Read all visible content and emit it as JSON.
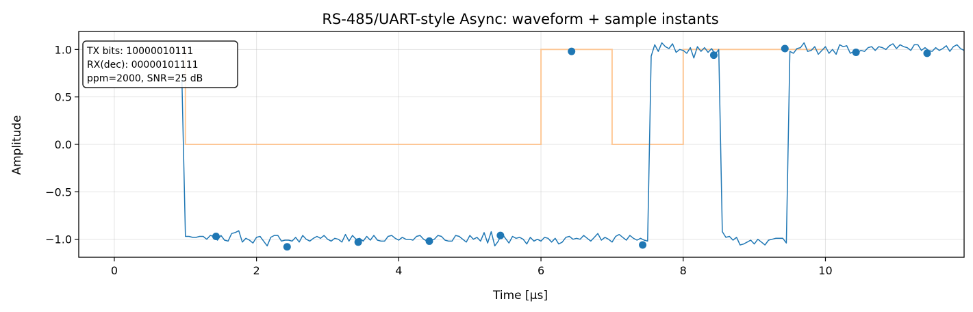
{
  "chart_data": {
    "type": "line",
    "title": "RS-485/UART-style Async: waveform + sample instants",
    "xlabel": "Time [μs]",
    "ylabel": "Amplitude",
    "xlim": [
      -0.5,
      11.95
    ],
    "ylim": [
      -1.19,
      1.19
    ],
    "xticks": [
      0,
      2,
      4,
      6,
      8,
      10
    ],
    "xtick_labels": [
      "0",
      "2",
      "4",
      "6",
      "8",
      "10"
    ],
    "yticks": [
      -1.0,
      -0.5,
      0.0,
      0.5,
      1.0
    ],
    "ytick_labels": [
      "−1.0",
      "−0.5",
      "0.0",
      "0.5",
      "1.0"
    ],
    "grid": true,
    "colors": {
      "waveform": "#1f77b4",
      "ideal": "#ffbf86",
      "samples": "#1f77b4"
    },
    "annotation": {
      "lines": [
        "TX bits: 10000010111",
        "RX(dec): 00000101111",
        "ppm=2000, SNR=25 dB"
      ],
      "placement": "top-left"
    },
    "series": [
      {
        "kind": "step",
        "x": [
          0.95,
          1.0,
          1.0,
          6.0,
          6.0,
          7.0,
          7.0,
          8.0,
          8.0,
          10.0
        ],
        "y": [
          1,
          1,
          0,
          0,
          1,
          1,
          0,
          0,
          1,
          1
        ]
      },
      {
        "kind": "line",
        "x_start": 0.95,
        "x_step": 0.05,
        "y": [
          0.7,
          -0.97,
          -0.97,
          -0.98,
          -0.98,
          -0.97,
          -0.97,
          -1.0,
          -0.96,
          -0.97,
          -1.01,
          -0.96,
          -1.01,
          -1.02,
          -0.94,
          -0.93,
          -0.91,
          -1.03,
          -0.99,
          -1.01,
          -1.04,
          -0.98,
          -0.97,
          -1.02,
          -1.07,
          -0.98,
          -0.96,
          -0.96,
          -1.02,
          -1.01,
          -1.01,
          -1.02,
          -0.98,
          -1.03,
          -0.96,
          -1.0,
          -1.02,
          -0.99,
          -0.97,
          -0.99,
          -0.96,
          -1.0,
          -1.02,
          -0.99,
          -1.0,
          -1.03,
          -0.95,
          -1.02,
          -0.96,
          -1.0,
          -0.99,
          -1.02,
          -0.97,
          -1.01,
          -0.96,
          -1.01,
          -1.02,
          -1.02,
          -0.97,
          -0.96,
          -0.99,
          -1.01,
          -0.98,
          -1.0,
          -1.0,
          -1.01,
          -0.97,
          -0.96,
          -1.0,
          -1.02,
          -1.01,
          -1.0,
          -0.96,
          -0.97,
          -1.01,
          -1.02,
          -1.02,
          -0.96,
          -0.97,
          -1.0,
          -1.03,
          -0.96,
          -1.0,
          -0.98,
          -1.02,
          -0.93,
          -1.04,
          -0.92,
          -1.07,
          -1.02,
          -0.94,
          -0.99,
          -1.04,
          -0.97,
          -0.99,
          -0.98,
          -1.0,
          -1.05,
          -0.98,
          -1.02,
          -1.0,
          -1.02,
          -0.98,
          -0.99,
          -1.03,
          -0.99,
          -1.05,
          -1.03,
          -0.98,
          -0.97,
          -1.0,
          -0.99,
          -1.0,
          -0.96,
          -0.99,
          -1.02,
          -0.98,
          -0.94,
          -1.01,
          -0.98,
          -1.0,
          -1.03,
          -0.97,
          -0.95,
          -0.98,
          -1.01,
          -0.96,
          -0.99,
          -1.01,
          -0.99,
          -1.01,
          -1.02,
          0.93,
          1.05,
          0.98,
          1.07,
          1.03,
          1.01,
          1.06,
          0.97,
          1.0,
          0.99,
          0.96,
          1.02,
          0.91,
          1.03,
          0.98,
          1.02,
          0.97,
          1.01,
          0.95,
          1.0,
          -0.92,
          -0.98,
          -0.97,
          -1.01,
          -0.98,
          -1.06,
          -1.05,
          -1.03,
          -1.01,
          -1.05,
          -1.0,
          -1.03,
          -1.06,
          -1.01,
          -1.0,
          -0.99,
          -0.99,
          -0.99,
          -1.04,
          0.98,
          0.96,
          1.01,
          1.02,
          1.07,
          0.98,
          0.99,
          1.03,
          0.95,
          0.99,
          1.03,
          0.96,
          1.0,
          0.95,
          1.05,
          1.03,
          1.04,
          0.96,
          0.98,
          0.97,
          0.99,
          0.98,
          1.02,
          1.03,
          0.99,
          1.03,
          1.02,
          1.0,
          1.04,
          1.06,
          1.01,
          1.05,
          1.03,
          1.02,
          0.99,
          1.05,
          1.05,
          0.99,
          1.02,
          0.99,
          0.98,
          1.02,
          0.99,
          1.01,
          1.04,
          0.98,
          1.03,
          1.05,
          1.01,
          0.99,
          0.97,
          1.0,
          1.03,
          1.05,
          1.0,
          0.98,
          1.04,
          1.02,
          0.99,
          1.03,
          0.96
        ]
      },
      {
        "kind": "scatter",
        "x": [
          1.43,
          2.43,
          3.43,
          4.43,
          5.43,
          6.43,
          7.43,
          8.43,
          9.43,
          10.43,
          11.43
        ],
        "y": [
          -0.97,
          -1.08,
          -1.03,
          -1.02,
          -0.96,
          0.98,
          -1.06,
          0.94,
          1.01,
          0.97,
          0.96
        ]
      }
    ]
  }
}
